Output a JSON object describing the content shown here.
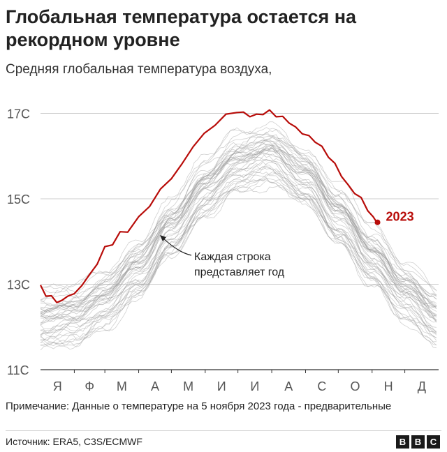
{
  "title": "Глобальная температура остается на рекордном уровне",
  "subtitle": "Средняя глобальная температура воздуха,",
  "note": "Примечание: Данные о температуре на 5 ноября 2023 года - предварительные",
  "source": "Источник: ERA5, C3S/ECMWF",
  "logo": [
    "B",
    "B",
    "C"
  ],
  "colors": {
    "highlight": "#b80c09",
    "history": "#9a9a9a",
    "grid": "#cccccc",
    "axis": "#555555"
  },
  "chart_data": {
    "type": "line",
    "title": "Глобальная температура остается на рекордном уровне",
    "xlabel": "",
    "ylabel": "",
    "ylim": [
      11,
      17.4
    ],
    "yticks": [
      11,
      13,
      15,
      17
    ],
    "ytick_labels": [
      "11С",
      "13С",
      "15С",
      "17С"
    ],
    "months": [
      "Я",
      "Ф",
      "М",
      "А",
      "М",
      "И",
      "И",
      "А",
      "С",
      "О",
      "Н",
      "Д"
    ],
    "x_unit": "day_of_year",
    "xlim": [
      0,
      365
    ],
    "annotation": "Каждая строка представляет год",
    "highlight": {
      "name": "2023",
      "x": [
        0,
        5,
        10,
        15,
        20,
        25,
        31,
        38,
        45,
        52,
        59,
        66,
        73,
        80,
        90,
        100,
        110,
        120,
        130,
        140,
        150,
        160,
        170,
        180,
        186,
        192,
        198,
        204,
        210,
        216,
        222,
        228,
        234,
        240,
        246,
        252,
        258,
        264,
        270,
        276,
        282,
        288,
        294,
        300,
        305,
        309
      ],
      "values": [
        12.95,
        12.75,
        12.7,
        12.6,
        12.6,
        12.75,
        12.75,
        13.0,
        13.2,
        13.5,
        13.85,
        13.95,
        14.2,
        14.25,
        14.55,
        14.85,
        15.2,
        15.5,
        15.8,
        16.25,
        16.5,
        16.75,
        16.95,
        17.05,
        17.0,
        16.95,
        16.95,
        17.0,
        17.05,
        16.95,
        16.9,
        16.8,
        16.65,
        16.55,
        16.45,
        16.35,
        16.2,
        16.0,
        15.8,
        15.55,
        15.3,
        15.15,
        15.0,
        14.75,
        14.55,
        14.45
      ],
      "end_label": "2023"
    },
    "background_series": {
      "count": 44,
      "description_note": "",
      "x": [
        0,
        31,
        59,
        90,
        120,
        151,
        181,
        212,
        243,
        273,
        304,
        334,
        365
      ],
      "mean_values": [
        12.2,
        12.25,
        12.65,
        13.4,
        14.35,
        15.25,
        15.85,
        16.05,
        15.55,
        14.65,
        13.65,
        12.8,
        12.25
      ],
      "spread": 0.55
    }
  }
}
